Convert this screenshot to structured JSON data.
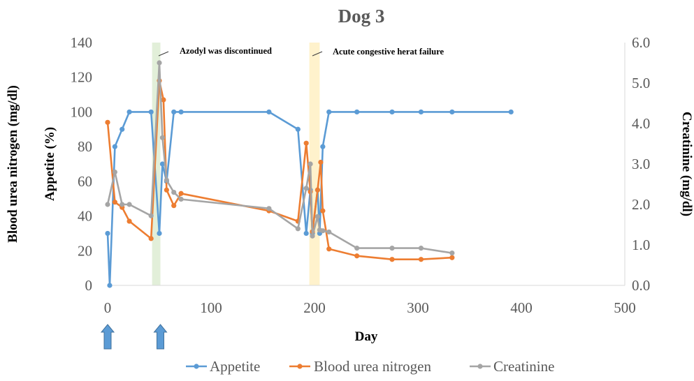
{
  "chart_data": {
    "type": "line",
    "title": "Dog 3",
    "xlabel": "Day",
    "ylabel_left": "Appetite (%)",
    "ylabel_left_outer": "Blood urea nitrogen (mg/dl)",
    "ylabel_right": "Creatinine (mg/dl)",
    "xlim": [
      0,
      500
    ],
    "x_ticks": [
      "0",
      "100",
      "200",
      "300",
      "400",
      "500"
    ],
    "ylim_left": [
      0,
      140
    ],
    "y_left_ticks": [
      "0",
      "20",
      "40",
      "60",
      "80",
      "100",
      "120",
      "140"
    ],
    "ylim_right": [
      0,
      6
    ],
    "y_right_ticks": [
      "0.0",
      "1.0",
      "2.0",
      "3.0",
      "4.0",
      "5.0",
      "6.0"
    ],
    "grid": false,
    "legend_position": "bottom",
    "shaded_regions": [
      {
        "x_start": 43,
        "x_end": 51,
        "color": "#e2efd9"
      },
      {
        "x_start": 195,
        "x_end": 205,
        "color": "#fff2cc"
      }
    ],
    "annotations": [
      {
        "text": "Azodyl was discontinued",
        "x": 50
      },
      {
        "text": "Acute congestive herat failure",
        "x": 200
      }
    ],
    "arrows_at_day": [
      0,
      51
    ],
    "series": [
      {
        "name": "Appetite",
        "axis": "left",
        "color": "#5b9bd5",
        "points": [
          [
            0,
            30
          ],
          [
            2,
            0
          ],
          [
            7,
            80
          ],
          [
            14,
            90
          ],
          [
            21,
            100
          ],
          [
            42,
            100
          ],
          [
            50,
            30
          ],
          [
            53,
            70
          ],
          [
            57,
            60
          ],
          [
            64,
            100
          ],
          [
            71,
            100
          ],
          [
            156,
            100
          ],
          [
            184,
            90
          ],
          [
            192,
            30
          ],
          [
            196,
            55
          ],
          [
            198,
            30
          ],
          [
            203,
            55
          ],
          [
            205,
            30
          ],
          [
            208,
            80
          ],
          [
            214,
            100
          ],
          [
            241,
            100
          ],
          [
            275,
            100
          ],
          [
            303,
            100
          ],
          [
            333,
            100
          ],
          [
            390,
            100
          ]
        ]
      },
      {
        "name": "Blood urea nitrogen",
        "axis": "left",
        "color": "#ed7d31",
        "points": [
          [
            0,
            94
          ],
          [
            7,
            48
          ],
          [
            14,
            45
          ],
          [
            21,
            37
          ],
          [
            42,
            27
          ],
          [
            50,
            118
          ],
          [
            54,
            107
          ],
          [
            57,
            55
          ],
          [
            64,
            46
          ],
          [
            71,
            53
          ],
          [
            156,
            43
          ],
          [
            184,
            37
          ],
          [
            192,
            82
          ],
          [
            196,
            54
          ],
          [
            198,
            31
          ],
          [
            203,
            55
          ],
          [
            206,
            71
          ],
          [
            208,
            43
          ],
          [
            214,
            21
          ],
          [
            241,
            17
          ],
          [
            275,
            15
          ],
          [
            303,
            15
          ],
          [
            333,
            16
          ]
        ]
      },
      {
        "name": "Creatinine",
        "axis": "right",
        "color": "#a5a5a5",
        "points": [
          [
            0,
            2.0
          ],
          [
            7,
            2.8
          ],
          [
            14,
            2.0
          ],
          [
            21,
            2.0
          ],
          [
            42,
            1.72
          ],
          [
            50,
            5.5
          ],
          [
            53,
            3.65
          ],
          [
            57,
            2.6
          ],
          [
            64,
            2.3
          ],
          [
            71,
            2.13
          ],
          [
            156,
            1.9
          ],
          [
            184,
            1.4
          ],
          [
            192,
            2.4
          ],
          [
            196,
            3.0
          ],
          [
            198,
            1.22
          ],
          [
            203,
            1.7
          ],
          [
            205,
            1.37
          ],
          [
            208,
            1.35
          ],
          [
            214,
            1.32
          ],
          [
            241,
            0.92
          ],
          [
            275,
            0.92
          ],
          [
            303,
            0.92
          ],
          [
            333,
            0.8
          ]
        ]
      }
    ]
  }
}
